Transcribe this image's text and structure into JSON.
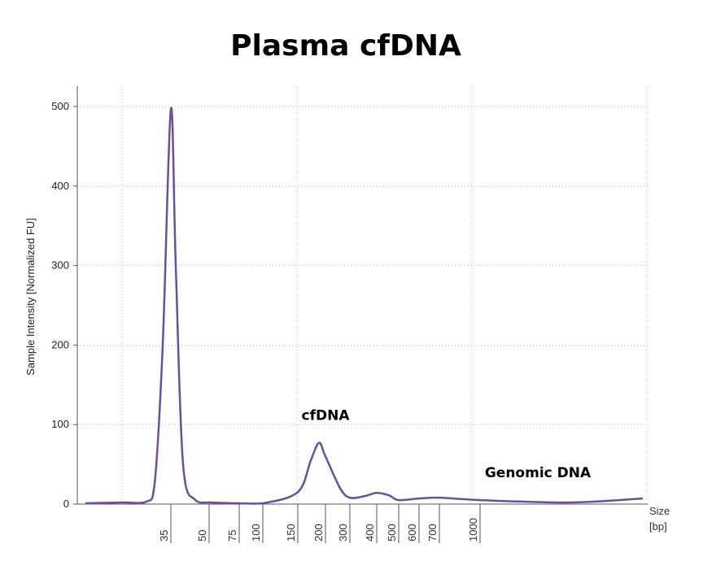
{
  "chart_data": {
    "type": "line",
    "title": "Plasma cfDNA",
    "ylabel": "Sample Intensity [Normalized FU]",
    "xlabel_line1": "Size",
    "xlabel_line2": "[bp]",
    "ylim": [
      0,
      500
    ],
    "y_ticks": [
      0,
      100,
      200,
      300,
      400,
      500
    ],
    "x_ticks": [
      "35",
      "50",
      "75",
      "100",
      "150",
      "200",
      "300",
      "400",
      "500",
      "600",
      "700",
      "1000"
    ],
    "grid": true,
    "series": [
      {
        "color": "#6a4f9c",
        "points": [
          [
            "<35",
            1
          ],
          [
            "30",
            2
          ],
          [
            "32",
            3
          ],
          [
            "33",
            25
          ],
          [
            "34",
            200
          ],
          [
            "35",
            497
          ],
          [
            "36",
            300
          ],
          [
            "38",
            50
          ],
          [
            "45",
            5
          ],
          [
            "50",
            2
          ],
          [
            "75",
            1
          ],
          [
            "100",
            1
          ],
          [
            "150",
            15
          ],
          [
            "175",
            55
          ],
          [
            "185",
            77
          ],
          [
            "200",
            60
          ],
          [
            "250",
            20
          ],
          [
            "300",
            8
          ],
          [
            "350",
            10
          ],
          [
            "400",
            14
          ],
          [
            "450",
            11
          ],
          [
            "500",
            5
          ],
          [
            "600",
            7
          ],
          [
            "700",
            8
          ],
          [
            "1000",
            5
          ],
          [
            "genomic",
            2
          ],
          [
            ">genomic",
            7
          ]
        ]
      }
    ],
    "annotations": [
      {
        "text": "cfDNA",
        "near_x": "200",
        "y": 112
      },
      {
        "text": "Genomic DNA",
        "near_x": "1000+",
        "y": 40
      }
    ]
  },
  "colors": {
    "trace": "#6a4f9c",
    "grid": "#b8b8b8",
    "axis": "#555555"
  }
}
